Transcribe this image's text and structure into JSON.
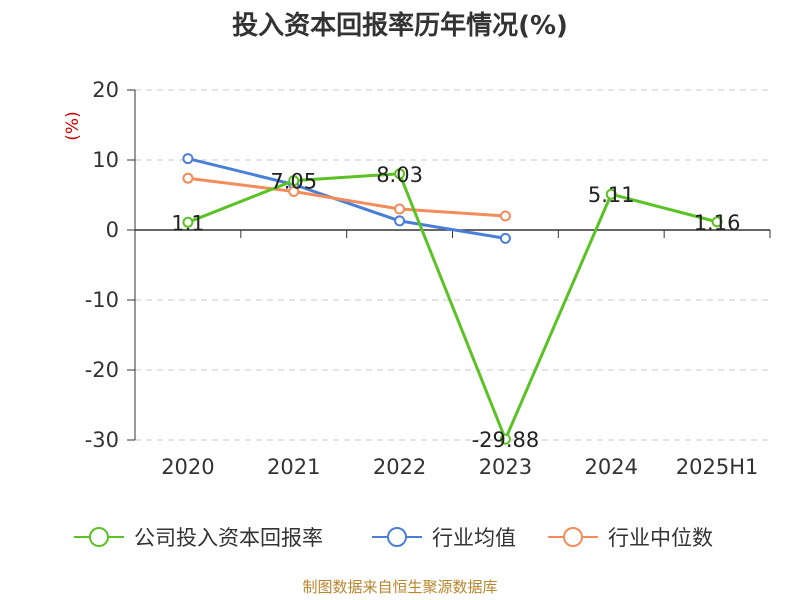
{
  "chart_data": {
    "type": "line",
    "title": "投入资本回报率历年情况(%)",
    "ylabel": "(%)",
    "categories": [
      "2020",
      "2021",
      "2022",
      "2023",
      "2024",
      "2025H1"
    ],
    "ylim": [
      -30,
      20
    ],
    "yticks": [
      20,
      10,
      0,
      -10,
      -20,
      -30
    ],
    "grid": true,
    "legend_position": "bottom",
    "series": [
      {
        "name": "公司投入资本回报率",
        "color": "#5bc225",
        "values": [
          1.1,
          7.05,
          8.03,
          -29.88,
          5.11,
          1.16
        ],
        "labels": [
          "1.1",
          "7.05",
          "8.03",
          "-29.88",
          "5.11",
          "1.16"
        ]
      },
      {
        "name": "行业均值",
        "color": "#4a7fd8",
        "values": [
          10.2,
          6.5,
          1.3,
          -1.2,
          null,
          null
        ]
      },
      {
        "name": "行业中位数",
        "color": "#f28c5a",
        "values": [
          7.4,
          5.5,
          3.0,
          2.0,
          null,
          null
        ]
      }
    ],
    "source": "制图数据来自恒生聚源数据库"
  }
}
